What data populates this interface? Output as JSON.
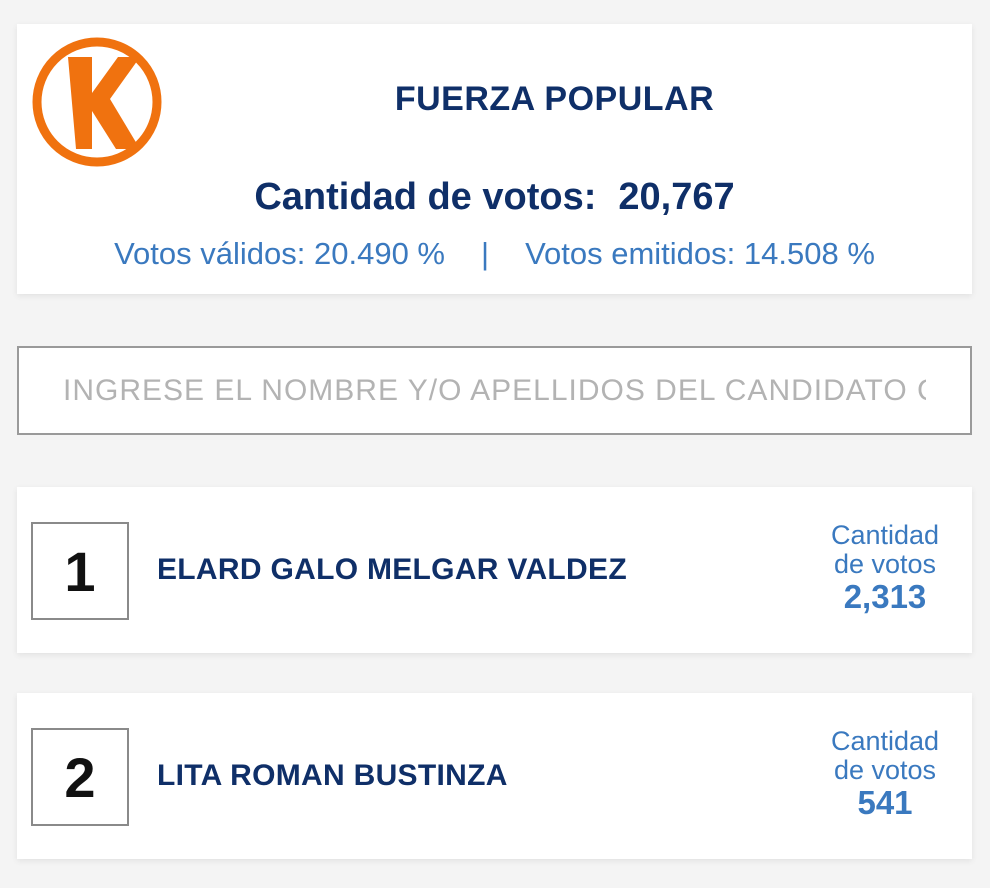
{
  "party": {
    "name": "FUERZA POPULAR",
    "logo_letter": "K",
    "logo_color": "#f0720f",
    "votes_label": "Cantidad de votos:",
    "votes_value": "20,767",
    "valid_label": "Votos válidos:",
    "valid_value": "20.490 %",
    "separator": "|",
    "emitted_label": "Votos emitidos:",
    "emitted_value": "14.508 %"
  },
  "search": {
    "placeholder": "INGRESE EL NOMBRE Y/O APELLIDOS DEL CANDIDATO C",
    "value": ""
  },
  "candidates": [
    {
      "rank": "1",
      "name": "ELARD GALO MELGAR VALDEZ",
      "votes_label_1": "Cantidad",
      "votes_label_2": "de votos",
      "votes": "2,313"
    },
    {
      "rank": "2",
      "name": "LITA ROMAN BUSTINZA",
      "votes_label_1": "Cantidad",
      "votes_label_2": "de votos",
      "votes": "541"
    }
  ],
  "colors": {
    "primary_text": "#0f2f68",
    "accent_text": "#3a79bf",
    "background": "#f4f4f4"
  }
}
